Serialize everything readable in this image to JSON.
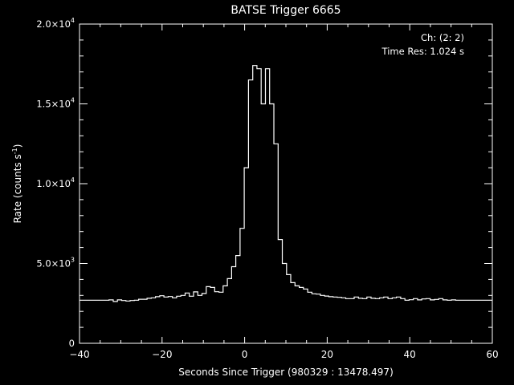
{
  "chart_data": {
    "type": "line",
    "title": "BATSE Trigger 6665",
    "xlabel": "Seconds Since Trigger (980329 : 13478.497)",
    "ylabel": "Rate (counts s",
    "ylabel_sup": "-1",
    "annotations": [
      "Ch: (2: 2)",
      "Time Res: 1.024 s"
    ],
    "xlim": [
      -40,
      60
    ],
    "ylim": [
      0,
      20000
    ],
    "x_ticks": [
      -40,
      -20,
      0,
      20,
      40,
      60
    ],
    "y_ticks": [
      {
        "value": 0,
        "mantissa": "0",
        "exp": ""
      },
      {
        "value": 5000,
        "mantissa": "5.0×10",
        "exp": "3"
      },
      {
        "value": 10000,
        "mantissa": "1.0×10",
        "exp": "4"
      },
      {
        "value": 15000,
        "mantissa": "1.5×10",
        "exp": "4"
      },
      {
        "value": 20000,
        "mantissa": "2.0×10",
        "exp": "4"
      }
    ],
    "grid": false,
    "bin_width": 1.024,
    "series": [
      {
        "style": "histogram-step",
        "bin_start": -39.0,
        "values": [
          2700,
          2700,
          2700,
          2700,
          2700,
          2700,
          2720,
          2620,
          2720,
          2680,
          2650,
          2680,
          2700,
          2760,
          2760,
          2820,
          2850,
          2920,
          2980,
          2900,
          2930,
          2850,
          2950,
          3000,
          3150,
          2950,
          3220,
          3000,
          3120,
          3550,
          3500,
          3230,
          3200,
          3600,
          4050,
          4800,
          5500,
          7200,
          11000,
          16500,
          17400,
          17200,
          15000,
          17200,
          15000,
          12500,
          6500,
          5000,
          4300,
          3800,
          3600,
          3500,
          3400,
          3200,
          3100,
          3080,
          3000,
          2960,
          2920,
          2900,
          2880,
          2850,
          2800,
          2800,
          2900,
          2820,
          2800,
          2900,
          2820,
          2800,
          2850,
          2900,
          2800,
          2850,
          2900,
          2800,
          2700,
          2730,
          2800,
          2720,
          2780,
          2800,
          2720,
          2750,
          2800,
          2720,
          2700,
          2720,
          2700,
          2700,
          2700,
          2700,
          2700,
          2700,
          2700,
          2700,
          2700,
          2700
        ]
      }
    ]
  }
}
